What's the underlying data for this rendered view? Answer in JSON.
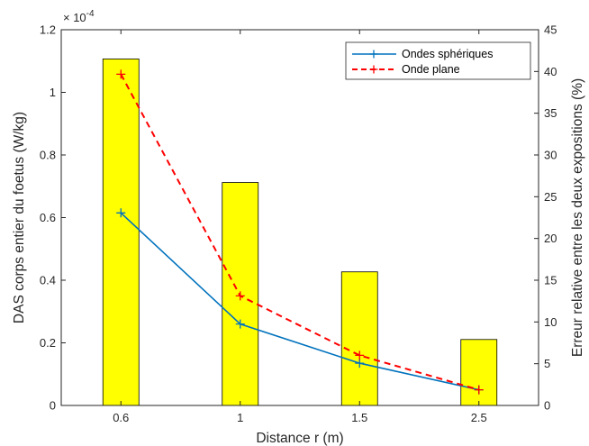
{
  "chart_data": {
    "type": "bar+line",
    "categories": [
      "0.6",
      "1",
      "1.5",
      "2.5"
    ],
    "xlabel": "Distance r (m)",
    "ylabel_left": "DAS corps entier du foetus (W/kg)",
    "ylabel_right": "Erreur relative entre les deux expositions (%)",
    "y_left_exponent_label": "× 10",
    "y_left_exponent_power": "-4",
    "y_left_range": [
      0,
      1.2
    ],
    "y_left_ticks": [
      "0",
      "0.2",
      "0.4",
      "0.6",
      "0.8",
      "1",
      "1.2"
    ],
    "y_right_range": [
      0,
      45
    ],
    "y_right_ticks": [
      "0",
      "5",
      "10",
      "15",
      "20",
      "25",
      "30",
      "35",
      "40",
      "45"
    ],
    "bars": {
      "axis": "right",
      "values": [
        41.5,
        26.7,
        16.0,
        7.9
      ],
      "color": "#FFFF00"
    },
    "series": [
      {
        "name": "Ondes sphériques",
        "axis": "left",
        "values": [
          0.615,
          0.26,
          0.135,
          0.05
        ],
        "color": "#0072BD",
        "line": "solid",
        "marker": "+"
      },
      {
        "name": "Onde plane",
        "axis": "left",
        "values": [
          1.058,
          0.35,
          0.16,
          0.05
        ],
        "color": "#FF0000",
        "line": "dashed",
        "marker": "+"
      }
    ],
    "legend": {
      "position": "top-right"
    },
    "grid": false
  }
}
